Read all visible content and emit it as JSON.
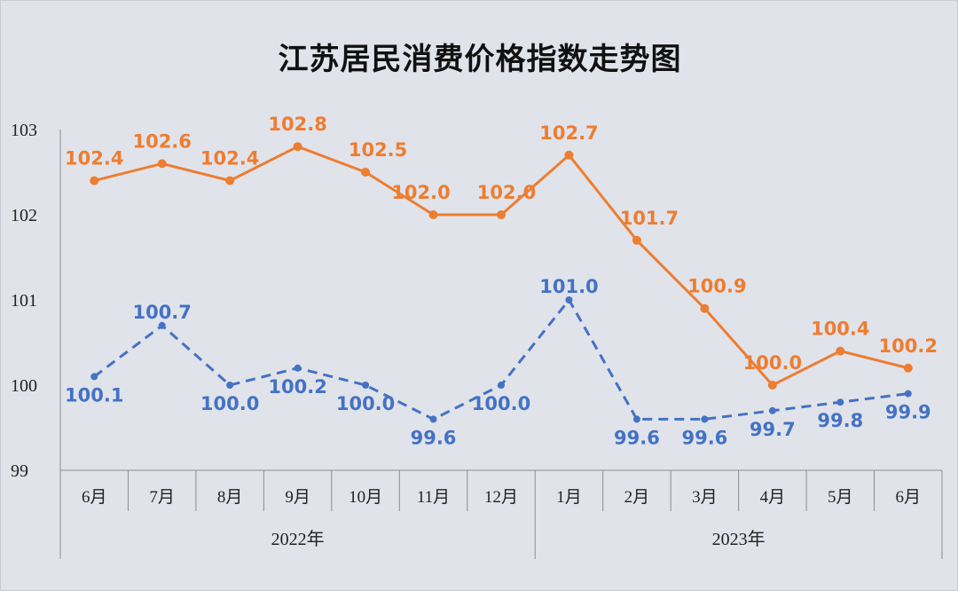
{
  "chart_data": {
    "type": "line",
    "title": "江苏居民消费价格指数走势图",
    "categories": [
      "6月",
      "7月",
      "8月",
      "9月",
      "10月",
      "11月",
      "12月",
      "1月",
      "2月",
      "3月",
      "4月",
      "5月",
      "6月"
    ],
    "groups": [
      {
        "label": "2022年",
        "count": 7
      },
      {
        "label": "2023年",
        "count": 6
      }
    ],
    "series": [
      {
        "color": "#ed7d31",
        "style": "solid",
        "values": [
          102.4,
          102.6,
          102.4,
          102.8,
          102.5,
          102.0,
          102.0,
          102.7,
          101.7,
          100.9,
          100.0,
          100.4,
          100.2
        ],
        "labels": [
          "102.4",
          "102.6",
          "102.4",
          "102.8",
          "102.5",
          "102.0",
          "102.0",
          "102.7",
          "101.7",
          "100.9",
          "100.0",
          "100.4",
          "100.2"
        ]
      },
      {
        "color": "#4472c4",
        "style": "dashed",
        "values": [
          100.1,
          100.7,
          100.0,
          100.2,
          100.0,
          99.6,
          100.0,
          101.0,
          99.6,
          99.6,
          99.7,
          99.8,
          99.9
        ],
        "labels": [
          "100.1",
          "100.7",
          "100.0",
          "100.2",
          "100.0",
          "99.6",
          "100.0",
          "101.0",
          "99.6",
          "99.6",
          "99.7",
          "99.8",
          "99.9"
        ]
      }
    ],
    "yticks": [
      "103",
      "102",
      "101",
      "100",
      "99"
    ],
    "ylim": [
      99,
      103
    ],
    "grid": false,
    "legend": "none"
  }
}
